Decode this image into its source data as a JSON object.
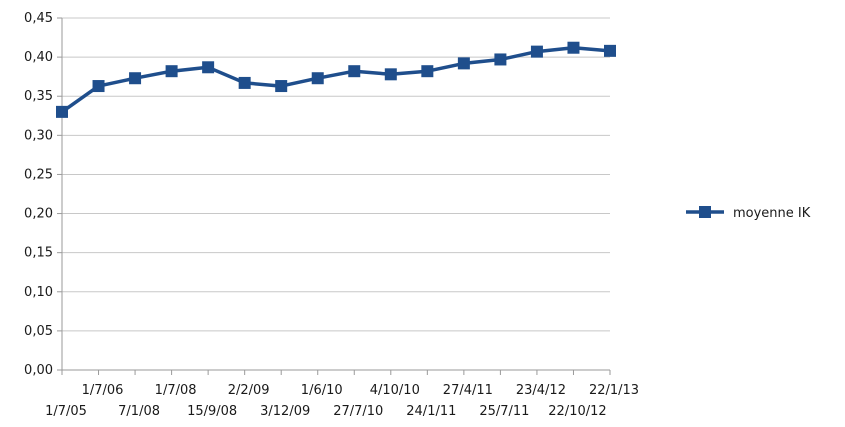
{
  "chart_data": {
    "type": "line",
    "title": "",
    "xlabel": "",
    "ylabel": "",
    "ylim": [
      0,
      0.45
    ],
    "y_ticks": [
      "0,00",
      "0,05",
      "0,10",
      "0,15",
      "0,20",
      "0,25",
      "0,30",
      "0,35",
      "0,40",
      "0,45"
    ],
    "grid": true,
    "legend_position": "right",
    "categories": [
      "1/7/05",
      "1/7/06",
      "7/1/08",
      "1/7/08",
      "15/9/08",
      "2/2/09",
      "3/12/09",
      "1/6/10",
      "27/7/10",
      "4/10/10",
      "24/1/11",
      "27/4/11",
      "25/7/11",
      "23/4/12",
      "22/10/12",
      "22/1/13"
    ],
    "series": [
      {
        "name": "moyenne IK",
        "color": "#1f4e8c",
        "marker": "square",
        "values": [
          0.33,
          0.363,
          0.373,
          0.382,
          0.387,
          0.367,
          0.363,
          0.373,
          0.382,
          0.378,
          0.382,
          0.392,
          0.397,
          0.407,
          0.412,
          0.408
        ]
      }
    ]
  }
}
